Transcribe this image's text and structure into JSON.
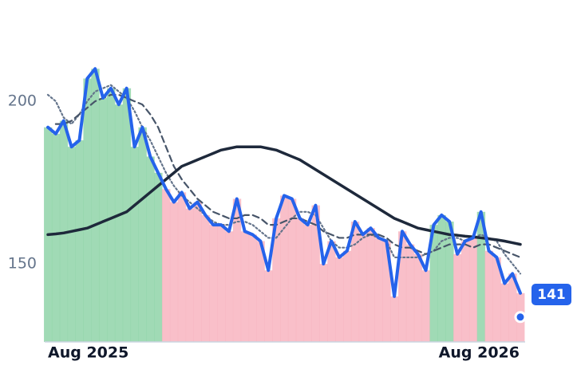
{
  "chart_data": {
    "type": "line",
    "x": [
      0,
      1,
      2,
      3,
      4,
      5,
      6,
      7,
      8,
      9,
      10,
      11,
      12,
      13,
      14,
      15,
      16,
      17,
      18,
      19,
      20,
      21,
      22,
      23,
      24,
      25,
      26,
      27,
      28,
      29,
      30,
      31,
      32,
      33,
      34,
      35,
      36,
      37,
      38,
      39,
      40,
      41,
      42,
      43,
      44,
      45,
      46,
      47,
      48,
      49,
      50,
      51,
      52,
      53,
      54,
      55,
      56,
      57,
      58,
      59,
      60
    ],
    "xlim": [
      0,
      60
    ],
    "xticks": [
      {
        "value": 0,
        "label": "Aug 2025"
      },
      {
        "value": 55,
        "label": "Aug 2026"
      }
    ],
    "ylim": [
      126,
      226
    ],
    "yticks": [
      150,
      200
    ],
    "up_color": "#8fd3a8",
    "down_color": "#f8b4c0",
    "series": [
      {
        "color": "#2563eb",
        "values": [
          192,
          190,
          194,
          186,
          188,
          207,
          210,
          201,
          204,
          199,
          204,
          186,
          192,
          183,
          178,
          173,
          169,
          172,
          167,
          169,
          165,
          162,
          162,
          160,
          170,
          160,
          159,
          157,
          148,
          164,
          171,
          170,
          164,
          162,
          168,
          150,
          157,
          152,
          154,
          163,
          159,
          161,
          158,
          157,
          140,
          160,
          156,
          153,
          148,
          162,
          165,
          163,
          153,
          157,
          158,
          166,
          154,
          152,
          144,
          147,
          141
        ]
      },
      {
        "color": "#1e293b",
        "values": [
          159,
          159.2,
          159.5,
          160,
          160.5,
          161,
          162,
          163,
          164,
          165,
          166,
          168,
          170,
          172,
          174,
          176,
          178,
          180,
          181,
          182,
          183,
          184,
          185,
          185.5,
          186,
          186,
          186,
          186,
          185.5,
          185,
          184,
          183,
          182,
          180.5,
          179,
          177.5,
          176,
          174.5,
          173,
          171.5,
          170,
          168.5,
          167,
          165.5,
          164,
          163,
          162,
          161,
          160.5,
          160,
          159.5,
          159,
          158.8,
          158.5,
          158.3,
          158,
          157.7,
          157.4,
          157,
          156.5,
          156
        ]
      },
      {
        "color": "#475569",
        "dash": "8 5",
        "values": [
          null,
          193,
          193,
          194,
          196,
          198,
          200,
          201,
          202,
          202,
          201,
          200,
          199,
          196,
          192,
          186,
          180,
          176,
          173,
          170,
          168,
          166,
          165,
          164,
          164,
          165,
          165,
          164,
          162,
          162,
          163,
          164,
          164,
          163,
          162,
          160,
          159,
          158,
          158,
          159,
          159,
          159,
          159,
          158,
          156,
          155,
          155,
          154,
          153,
          154,
          155,
          156,
          156,
          156,
          155,
          156,
          156,
          155,
          154,
          153,
          152
        ]
      },
      {
        "color": "#64748b",
        "dash": "2 3",
        "values": [
          202,
          200,
          195,
          193,
          196,
          200,
          203,
          204,
          205,
          203,
          201,
          197,
          192,
          188,
          183,
          178,
          174,
          171,
          169,
          167,
          165,
          163,
          162,
          162,
          163,
          163,
          162,
          160,
          158,
          158,
          161,
          164,
          166,
          166,
          165,
          161,
          157,
          155,
          155,
          156,
          158,
          159,
          158,
          157,
          152,
          152,
          152,
          152,
          153,
          154,
          157,
          158,
          158,
          157,
          158,
          159,
          158,
          157,
          153,
          150,
          147
        ]
      }
    ]
  }
}
